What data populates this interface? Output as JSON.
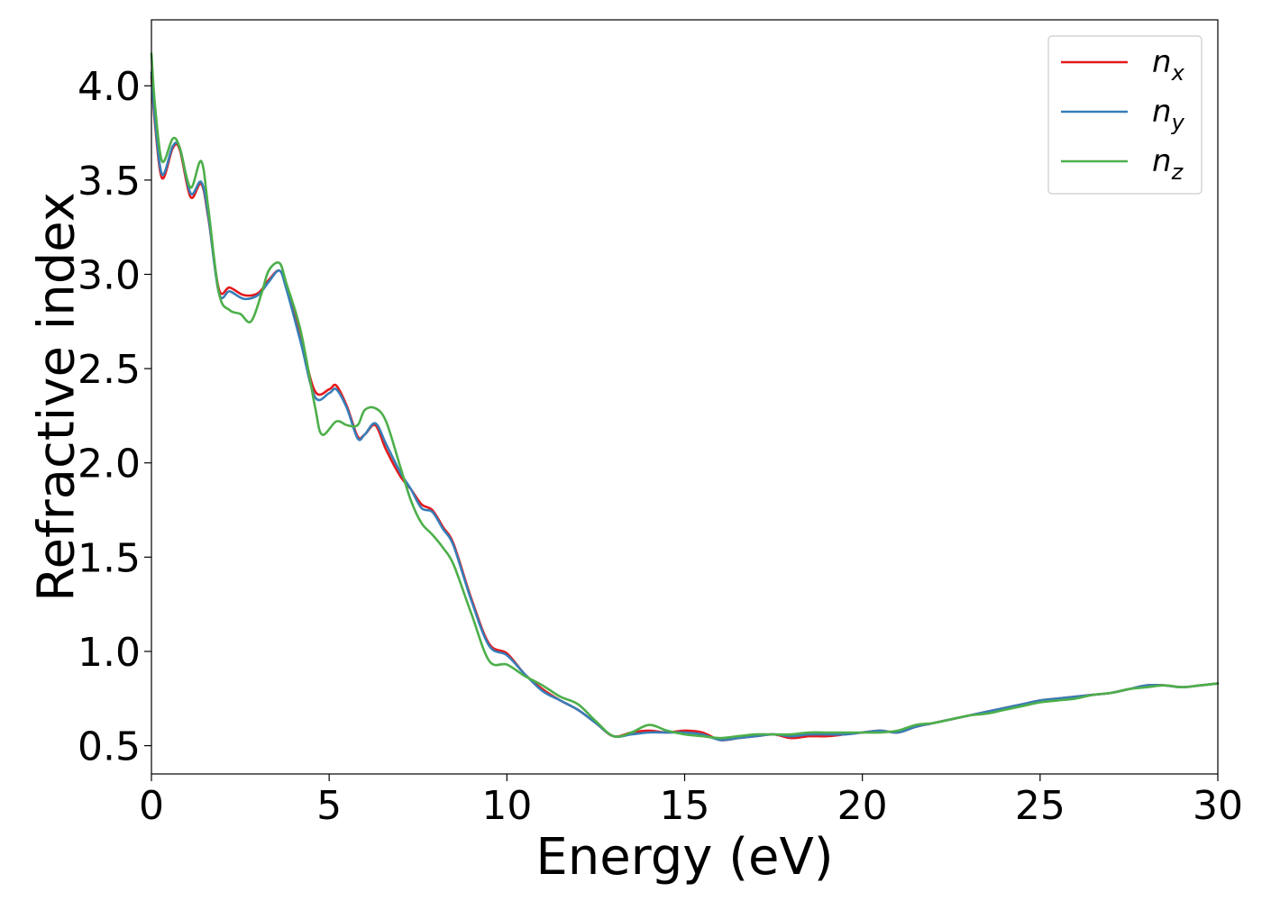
{
  "chart_data": {
    "type": "line",
    "xlabel": "Energy (eV)",
    "ylabel": "Refractive index",
    "xlim": [
      0,
      30
    ],
    "ylim": [
      0.35,
      4.35
    ],
    "xticks": [
      0,
      5,
      10,
      15,
      20,
      25,
      30
    ],
    "xtick_labels": [
      "0",
      "5",
      "10",
      "15",
      "20",
      "25",
      "30"
    ],
    "yticks": [
      0.5,
      1.0,
      1.5,
      2.0,
      2.5,
      3.0,
      3.5,
      4.0
    ],
    "ytick_labels": [
      "0.5",
      "1.0",
      "1.5",
      "2.0",
      "2.5",
      "3.0",
      "3.5",
      "4.0"
    ],
    "grid": false,
    "legend_position": "top-right",
    "series": [
      {
        "name": "n_x",
        "label_base": "n",
        "label_sub": "x",
        "color": "#e41a1c",
        "x": [
          0,
          0.1,
          0.3,
          0.6,
          0.8,
          1.1,
          1.4,
          1.6,
          1.9,
          2.2,
          2.6,
          3.0,
          3.3,
          3.6,
          3.8,
          4.2,
          4.6,
          5.0,
          5.2,
          5.5,
          5.8,
          6.0,
          6.3,
          6.6,
          7.0,
          7.3,
          7.6,
          7.9,
          8.2,
          8.5,
          9.0,
          9.5,
          10.0,
          10.5,
          11.0,
          11.5,
          12.0,
          12.5,
          13.0,
          13.5,
          14.0,
          14.5,
          15.0,
          15.5,
          16.0,
          16.5,
          17.0,
          17.5,
          18.0,
          18.5,
          19.0,
          19.5,
          20.0,
          20.5,
          21.0,
          21.5,
          22.0,
          22.5,
          23.0,
          23.5,
          24.0,
          24.5,
          25.0,
          25.5,
          26.0,
          26.5,
          27.0,
          27.5,
          28.0,
          28.5,
          29.0,
          29.5,
          30.0
        ],
        "values": [
          4.05,
          3.8,
          3.51,
          3.67,
          3.66,
          3.41,
          3.48,
          3.3,
          2.92,
          2.93,
          2.89,
          2.9,
          2.97,
          3.02,
          2.93,
          2.66,
          2.38,
          2.39,
          2.41,
          2.3,
          2.14,
          2.15,
          2.2,
          2.07,
          1.93,
          1.86,
          1.78,
          1.75,
          1.66,
          1.57,
          1.28,
          1.04,
          0.99,
          0.88,
          0.8,
          0.74,
          0.69,
          0.62,
          0.55,
          0.57,
          0.58,
          0.57,
          0.58,
          0.57,
          0.53,
          0.54,
          0.55,
          0.56,
          0.54,
          0.55,
          0.55,
          0.56,
          0.57,
          0.58,
          0.57,
          0.6,
          0.62,
          0.64,
          0.66,
          0.68,
          0.7,
          0.72,
          0.74,
          0.75,
          0.76,
          0.77,
          0.78,
          0.8,
          0.82,
          0.82,
          0.81,
          0.82,
          0.83
        ]
      },
      {
        "name": "n_y",
        "label_base": "n",
        "label_sub": "y",
        "color": "#377eb8",
        "x": [
          0,
          0.1,
          0.3,
          0.6,
          0.8,
          1.1,
          1.4,
          1.6,
          1.9,
          2.2,
          2.6,
          3.0,
          3.3,
          3.6,
          3.8,
          4.2,
          4.6,
          5.0,
          5.2,
          5.5,
          5.8,
          6.0,
          6.3,
          6.6,
          7.0,
          7.3,
          7.6,
          7.9,
          8.2,
          8.5,
          9.0,
          9.5,
          10.0,
          10.5,
          11.0,
          11.5,
          12.0,
          12.5,
          13.0,
          13.5,
          14.0,
          14.5,
          15.0,
          15.5,
          16.0,
          16.5,
          17.0,
          17.5,
          18.0,
          18.5,
          19.0,
          19.5,
          20.0,
          20.5,
          21.0,
          21.5,
          22.0,
          22.5,
          23.0,
          23.5,
          24.0,
          24.5,
          25.0,
          25.5,
          26.0,
          26.5,
          27.0,
          27.5,
          28.0,
          28.5,
          29.0,
          29.5,
          30.0
        ],
        "values": [
          4.07,
          3.82,
          3.53,
          3.68,
          3.67,
          3.43,
          3.49,
          3.31,
          2.9,
          2.91,
          2.87,
          2.89,
          2.96,
          3.02,
          2.92,
          2.64,
          2.35,
          2.37,
          2.39,
          2.29,
          2.13,
          2.15,
          2.21,
          2.1,
          1.95,
          1.86,
          1.76,
          1.74,
          1.65,
          1.56,
          1.27,
          1.03,
          0.98,
          0.88,
          0.79,
          0.74,
          0.69,
          0.62,
          0.55,
          0.56,
          0.57,
          0.57,
          0.57,
          0.56,
          0.53,
          0.54,
          0.55,
          0.56,
          0.55,
          0.56,
          0.56,
          0.56,
          0.57,
          0.58,
          0.57,
          0.6,
          0.62,
          0.64,
          0.66,
          0.68,
          0.7,
          0.72,
          0.74,
          0.75,
          0.76,
          0.77,
          0.78,
          0.8,
          0.82,
          0.82,
          0.81,
          0.82,
          0.83
        ]
      },
      {
        "name": "n_z",
        "label_base": "n",
        "label_sub": "z",
        "color": "#4daf4a",
        "x": [
          0,
          0.1,
          0.3,
          0.6,
          0.8,
          1.1,
          1.4,
          1.6,
          1.9,
          2.2,
          2.5,
          2.8,
          3.1,
          3.3,
          3.6,
          3.8,
          4.2,
          4.6,
          4.8,
          5.2,
          5.5,
          5.8,
          6.0,
          6.3,
          6.6,
          7.0,
          7.3,
          7.6,
          7.9,
          8.2,
          8.5,
          9.0,
          9.5,
          10.0,
          10.5,
          11.0,
          11.5,
          12.0,
          12.5,
          13.0,
          13.5,
          14.0,
          14.5,
          15.0,
          15.5,
          16.0,
          16.5,
          17.0,
          17.5,
          18.0,
          18.5,
          19.0,
          19.5,
          20.0,
          20.5,
          21.0,
          21.5,
          22.0,
          22.5,
          23.0,
          23.5,
          24.0,
          24.5,
          25.0,
          25.5,
          26.0,
          26.5,
          27.0,
          27.5,
          28.0,
          28.5,
          29.0,
          29.5,
          30.0
        ],
        "values": [
          4.17,
          3.9,
          3.6,
          3.72,
          3.67,
          3.46,
          3.6,
          3.35,
          2.9,
          2.81,
          2.79,
          2.75,
          2.9,
          3.02,
          3.06,
          2.95,
          2.7,
          2.3,
          2.15,
          2.22,
          2.2,
          2.2,
          2.28,
          2.29,
          2.22,
          1.98,
          1.8,
          1.68,
          1.62,
          1.55,
          1.46,
          1.2,
          0.95,
          0.93,
          0.87,
          0.82,
          0.76,
          0.72,
          0.63,
          0.55,
          0.57,
          0.61,
          0.58,
          0.56,
          0.55,
          0.54,
          0.55,
          0.56,
          0.56,
          0.56,
          0.57,
          0.57,
          0.57,
          0.57,
          0.57,
          0.58,
          0.61,
          0.62,
          0.64,
          0.66,
          0.67,
          0.69,
          0.71,
          0.73,
          0.74,
          0.75,
          0.77,
          0.78,
          0.8,
          0.81,
          0.82,
          0.81,
          0.82,
          0.83
        ]
      }
    ]
  }
}
